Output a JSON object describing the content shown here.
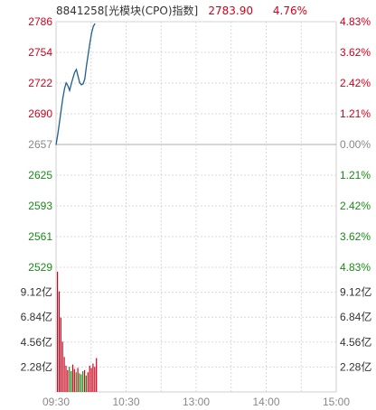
{
  "header": {
    "name": "8841258[光模块(CPO)指数]",
    "price": "2783.90",
    "change_pct": "4.76%"
  },
  "colors": {
    "up": "#d0021b",
    "down": "#1a8a1a",
    "neutral": "#888888",
    "price_line": "#1f5f8b",
    "grid": "#d9d9d9",
    "dark_text": "#333333"
  },
  "chart_data": [
    {
      "type": "line",
      "x_ticks": [
        "09:30",
        "10:30",
        "13:00",
        "14:00",
        "15:00"
      ],
      "y_ticks": [
        "2786",
        "2754",
        "2722",
        "2690",
        "2657",
        "2625",
        "2593",
        "2561",
        "2529"
      ],
      "y_right_ticks": [
        "4.83%",
        "3.62%",
        "2.42%",
        "1.21%",
        "0.00%",
        "1.21%",
        "2.42%",
        "3.62%",
        "4.83%"
      ],
      "ylim": [
        2529,
        2786
      ],
      "base": 2657,
      "series": [
        {
          "values": [
            2657,
            2668,
            2680,
            2693,
            2706,
            2716,
            2722,
            2719,
            2714,
            2721,
            2727,
            2733,
            2736,
            2729,
            2722,
            2720,
            2721,
            2726,
            2740,
            2752,
            2764,
            2774,
            2781,
            2784
          ]
        }
      ]
    },
    {
      "type": "bar",
      "y_ticks": [
        "9.12亿",
        "6.84亿",
        "4.56亿",
        "2.28亿"
      ],
      "ylim": [
        0,
        11.4
      ],
      "values": [
        11.0,
        9.2,
        6.8,
        4.6,
        3.2,
        2.4,
        2.0,
        2.3,
        1.9,
        2.5,
        2.1,
        1.8,
        2.2,
        1.7,
        1.6,
        1.9,
        2.0,
        1.5,
        1.8,
        2.4,
        2.2,
        2.6,
        2.3,
        3.1
      ],
      "colors": [
        "up",
        "up",
        "up",
        "up",
        "up",
        "up",
        "up",
        "down",
        "down",
        "up",
        "up",
        "down",
        "up",
        "down",
        "down",
        "down",
        "up",
        "down",
        "up",
        "up",
        "up",
        "up",
        "up",
        "up"
      ]
    }
  ]
}
